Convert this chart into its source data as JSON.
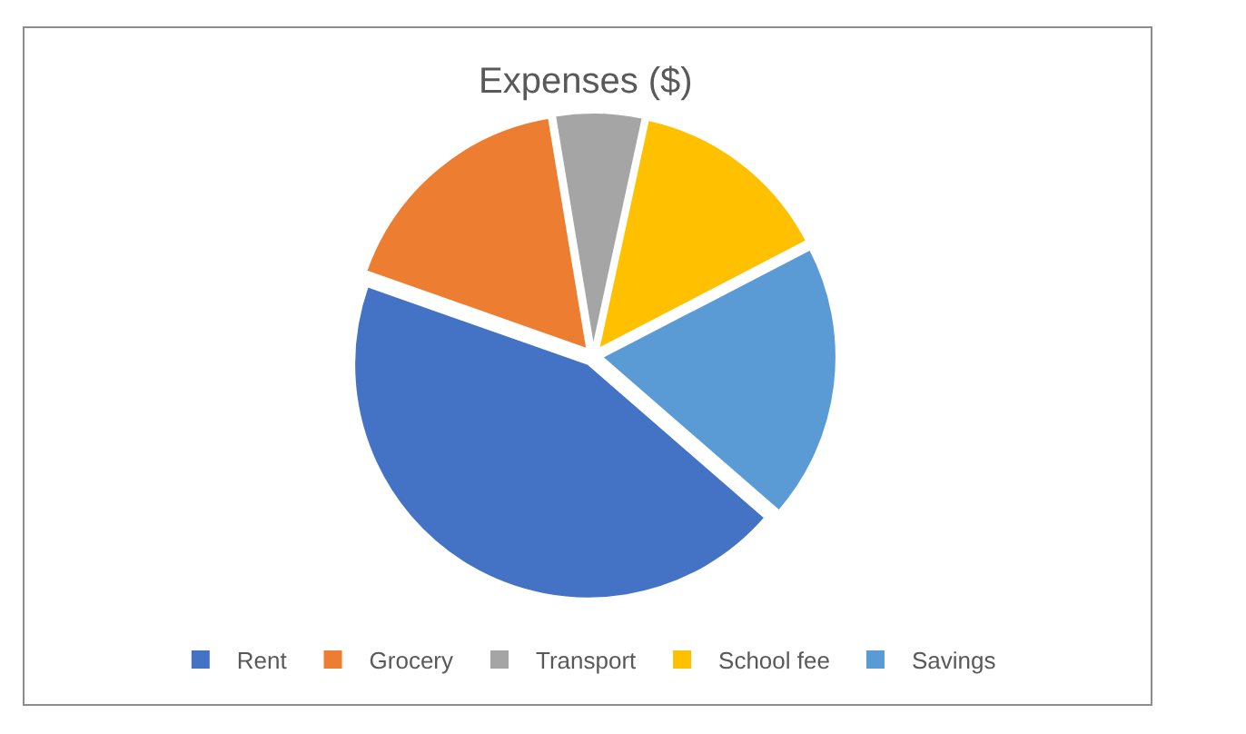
{
  "chart_data": {
    "type": "pie",
    "title": "Expenses ($)",
    "categories": [
      "Rent",
      "Grocery",
      "Transport",
      "School fee",
      "Savings"
    ],
    "values": [
      44,
      17,
      6,
      14,
      19
    ],
    "colors": [
      "#4472c4",
      "#ed7d31",
      "#a5a5a5",
      "#ffc000",
      "#5b9bd5"
    ],
    "legend": "bottom"
  }
}
